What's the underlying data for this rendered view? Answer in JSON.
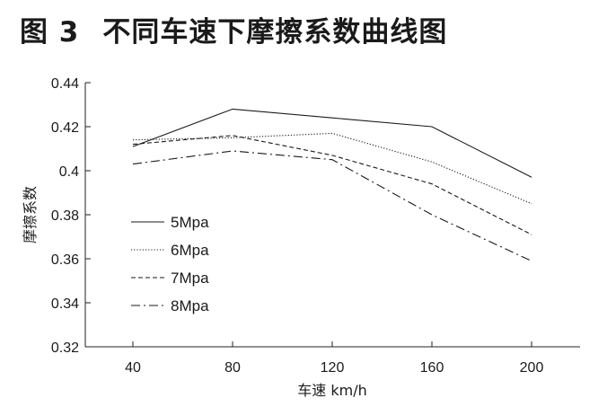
{
  "figure": {
    "number": "图 3",
    "title": "不同车速下摩擦系数曲线图"
  },
  "chart_data": {
    "type": "line",
    "title": "不同车速下摩擦系数曲线图",
    "xlabel": "车速 km/h",
    "ylabel": "摩擦系数",
    "categories": [
      "40",
      "80",
      "120",
      "160",
      "200"
    ],
    "y_ticks": [
      "0.32",
      "0.34",
      "0.36",
      "0.38",
      "0.4",
      "0.42",
      "0.44"
    ],
    "ylim": [
      0.32,
      0.44
    ],
    "grid": false,
    "legend_position": "left",
    "series": [
      {
        "name": "5Mpa",
        "dash": "solid",
        "values": [
          0.411,
          0.428,
          0.424,
          0.42,
          0.397
        ]
      },
      {
        "name": "6Mpa",
        "dash": "dotted",
        "values": [
          0.414,
          0.415,
          0.417,
          0.404,
          0.385
        ]
      },
      {
        "name": "7Mpa",
        "dash": "dashed",
        "values": [
          0.412,
          0.416,
          0.407,
          0.394,
          0.371
        ]
      },
      {
        "name": "8Mpa",
        "dash": "dash-dot",
        "values": [
          0.403,
          0.409,
          0.405,
          0.38,
          0.359
        ]
      }
    ]
  }
}
